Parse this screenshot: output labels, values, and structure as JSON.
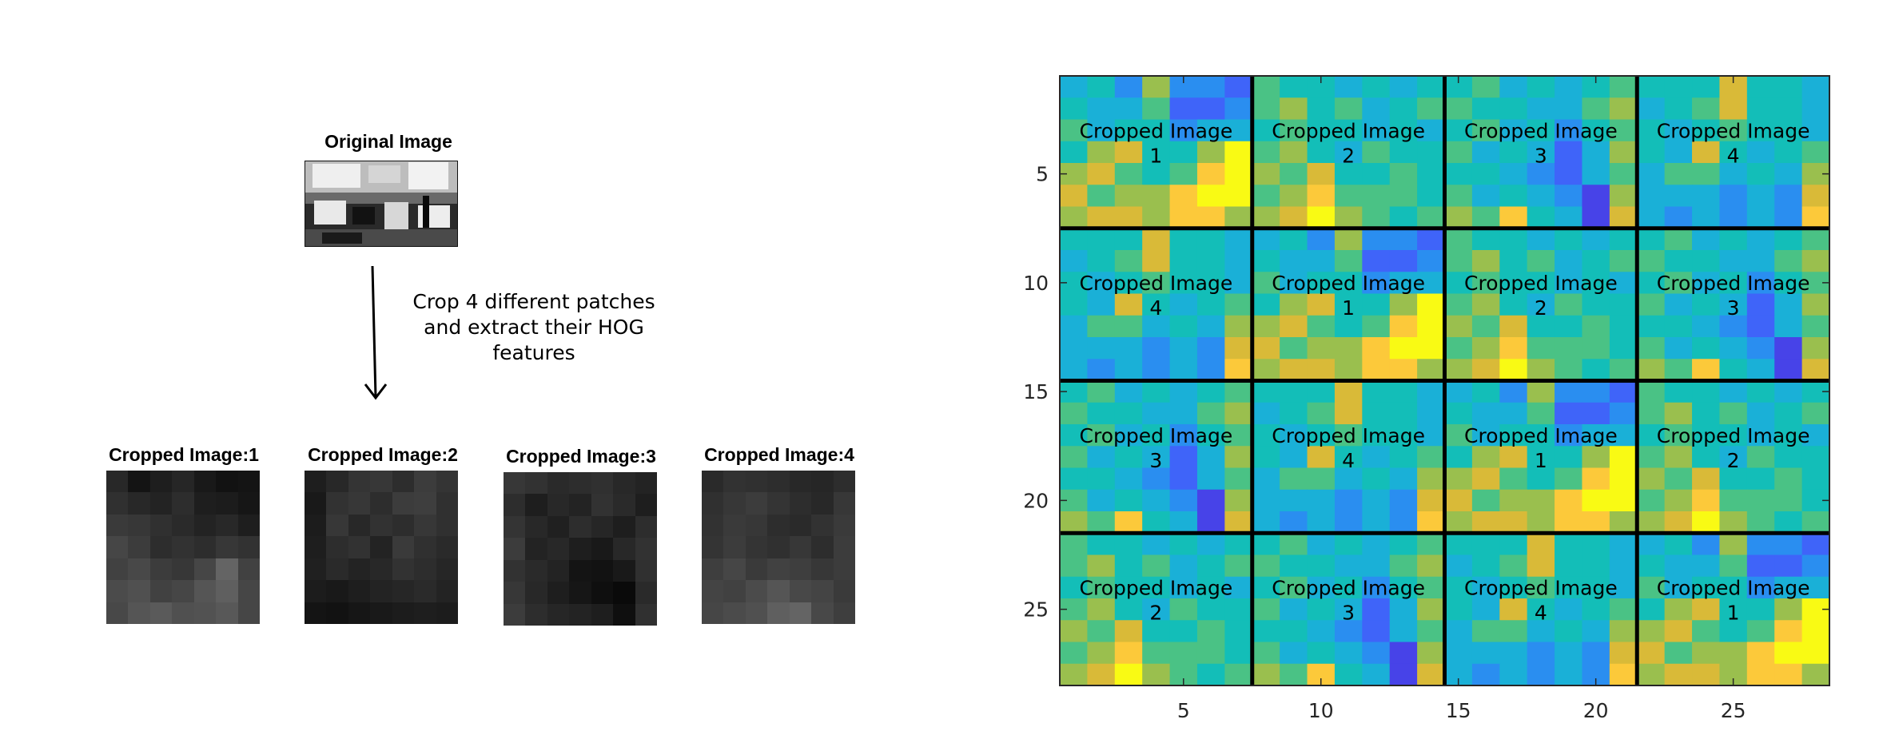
{
  "colors": {
    "parula": [
      "#3e26a8",
      "#4743e8",
      "#3f64f9",
      "#2a8ef0",
      "#1ab0d7",
      "#13beb8",
      "#4ac285",
      "#9abf4e",
      "#d9ba38",
      "#fcc93a",
      "#f9fa14"
    ],
    "grid_line": "#000000",
    "background": "#ffffff"
  },
  "left_panel": {
    "original_title": "Original Image",
    "instruction": [
      "Crop 4 different patches",
      "and extract their HOG",
      "features"
    ],
    "crops": [
      {
        "title": "Cropped Image:1",
        "gray": [
          [
            40,
            20,
            30,
            38,
            25,
            18,
            20
          ],
          [
            48,
            40,
            35,
            45,
            30,
            28,
            22
          ],
          [
            58,
            55,
            48,
            42,
            35,
            40,
            30
          ],
          [
            70,
            60,
            45,
            50,
            45,
            55,
            50
          ],
          [
            65,
            72,
            60,
            55,
            70,
            100,
            65
          ],
          [
            75,
            80,
            65,
            70,
            85,
            95,
            70
          ],
          [
            72,
            85,
            90,
            80,
            82,
            88,
            70
          ]
        ]
      },
      {
        "title": "Cropped Image:2",
        "gray": [
          [
            30,
            40,
            52,
            55,
            45,
            60,
            52
          ],
          [
            25,
            50,
            55,
            45,
            60,
            62,
            48
          ],
          [
            28,
            55,
            40,
            50,
            45,
            55,
            48
          ],
          [
            30,
            45,
            50,
            35,
            58,
            48,
            42
          ],
          [
            32,
            42,
            35,
            40,
            50,
            45,
            38
          ],
          [
            28,
            25,
            30,
            35,
            38,
            42,
            35
          ],
          [
            20,
            18,
            22,
            25,
            28,
            30,
            28
          ]
        ]
      },
      {
        "title": "Cropped Image:3",
        "gray": [
          [
            55,
            50,
            42,
            45,
            48,
            40,
            35
          ],
          [
            45,
            30,
            40,
            35,
            50,
            42,
            30
          ],
          [
            52,
            40,
            32,
            45,
            38,
            30,
            45
          ],
          [
            60,
            35,
            40,
            30,
            25,
            40,
            50
          ],
          [
            50,
            42,
            35,
            20,
            18,
            25,
            48
          ],
          [
            55,
            40,
            30,
            22,
            15,
            10,
            42
          ],
          [
            60,
            45,
            38,
            35,
            30,
            15,
            48
          ]
        ]
      },
      {
        "title": "Cropped Image:4",
        "gray": [
          [
            42,
            50,
            48,
            45,
            40,
            38,
            45
          ],
          [
            48,
            55,
            60,
            52,
            45,
            40,
            55
          ],
          [
            50,
            58,
            55,
            45,
            42,
            50,
            58
          ],
          [
            52,
            60,
            52,
            48,
            55,
            45,
            60
          ],
          [
            62,
            70,
            58,
            65,
            62,
            55,
            60
          ],
          [
            68,
            65,
            75,
            85,
            72,
            68,
            58
          ],
          [
            70,
            75,
            80,
            95,
            100,
            72,
            62
          ]
        ]
      }
    ]
  },
  "chart_data": {
    "type": "heatmap",
    "title": "",
    "xlabel": "",
    "ylabel": "",
    "x_ticks": [
      5,
      10,
      15,
      20,
      25
    ],
    "y_ticks": [
      5,
      10,
      15,
      20,
      25
    ],
    "xlim": [
      0.5,
      28.5
    ],
    "ylim": [
      0.5,
      28.5
    ],
    "block_grid": {
      "rows": 4,
      "cols": 4,
      "block_size": 7
    },
    "block_patch_ids": [
      [
        1,
        2,
        3,
        4
      ],
      [
        4,
        1,
        2,
        3
      ],
      [
        3,
        4,
        1,
        2
      ],
      [
        2,
        3,
        4,
        1
      ]
    ],
    "block_label": "Cropped Image",
    "patches": {
      "1": [
        [
          4,
          5,
          3,
          7,
          3,
          3,
          2
        ],
        [
          5,
          4,
          4,
          6,
          2,
          2,
          3
        ],
        [
          6,
          4,
          5,
          5,
          3,
          4,
          4
        ],
        [
          5,
          7,
          8,
          5,
          5,
          7,
          10
        ],
        [
          7,
          8,
          6,
          5,
          6,
          9,
          10
        ],
        [
          8,
          6,
          7,
          7,
          9,
          10,
          10
        ],
        [
          7,
          8,
          8,
          7,
          9,
          9,
          7
        ]
      ],
      "2": [
        [
          6,
          5,
          5,
          4,
          5,
          4,
          5
        ],
        [
          6,
          7,
          5,
          6,
          4,
          5,
          6
        ],
        [
          5,
          6,
          5,
          5,
          4,
          5,
          4
        ],
        [
          6,
          7,
          5,
          4,
          6,
          5,
          5
        ],
        [
          7,
          6,
          8,
          5,
          5,
          6,
          5
        ],
        [
          6,
          7,
          9,
          6,
          6,
          6,
          5
        ],
        [
          7,
          8,
          10,
          7,
          6,
          5,
          6
        ]
      ],
      "3": [
        [
          5,
          6,
          4,
          5,
          4,
          5,
          6
        ],
        [
          6,
          5,
          5,
          4,
          4,
          6,
          7
        ],
        [
          5,
          6,
          4,
          5,
          3,
          5,
          6
        ],
        [
          6,
          4,
          5,
          4,
          2,
          4,
          7
        ],
        [
          5,
          5,
          4,
          3,
          2,
          4,
          6
        ],
        [
          6,
          4,
          5,
          4,
          3,
          1,
          7
        ],
        [
          7,
          6,
          9,
          5,
          4,
          1,
          8
        ]
      ],
      "4": [
        [
          5,
          5,
          5,
          8,
          5,
          5,
          4
        ],
        [
          4,
          5,
          6,
          8,
          5,
          5,
          4
        ],
        [
          5,
          4,
          5,
          6,
          5,
          5,
          4
        ],
        [
          5,
          4,
          8,
          5,
          4,
          5,
          6
        ],
        [
          4,
          6,
          6,
          4,
          5,
          4,
          7
        ],
        [
          4,
          4,
          4,
          3,
          4,
          3,
          8
        ],
        [
          4,
          3,
          4,
          3,
          4,
          3,
          9
        ]
      ]
    }
  }
}
